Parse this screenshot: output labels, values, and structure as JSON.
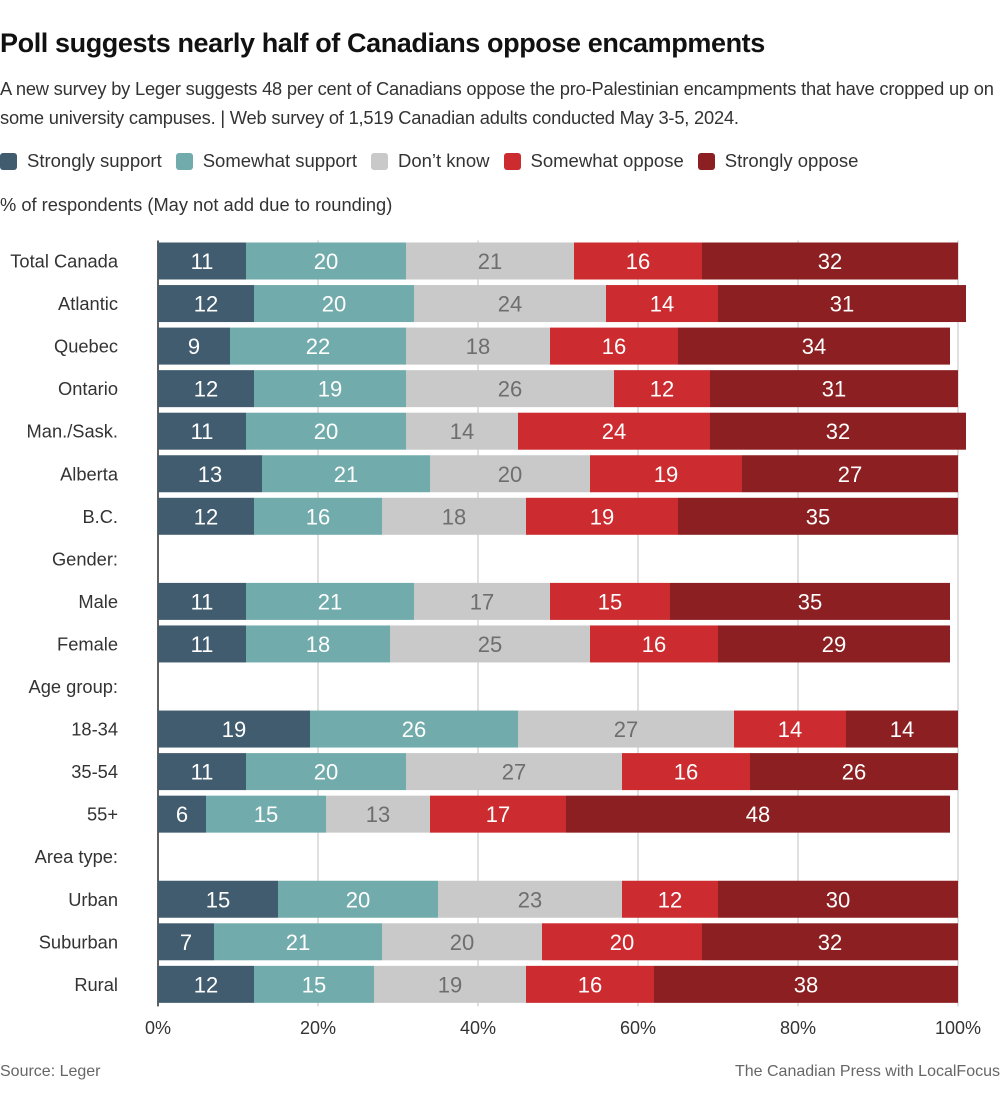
{
  "header": {
    "title": "Poll suggests nearly half of Canadians oppose encampments",
    "subtitle": "A new survey by Leger suggests 48 per cent of Canadians oppose the pro-Palestinian encampments that have cropped up on some university campuses. | Web survey of 1,519 Canadian adults conducted May 3-5, 2024.",
    "note": "% of respondents (May not add due to rounding)"
  },
  "footer": {
    "source": "Source:  Leger",
    "credit": "The Canadian Press with LocalFocus"
  },
  "chart_data": {
    "type": "bar",
    "orientation": "horizontal",
    "stacked": true,
    "title": "Poll suggests nearly half of Canadians oppose encampments",
    "xlabel": "% of respondents (May not add due to rounding)",
    "ylabel": "",
    "xlim": [
      0,
      100
    ],
    "x_ticks": [
      "0%",
      "20%",
      "40%",
      "60%",
      "80%",
      "100%"
    ],
    "grid": true,
    "legend_position": "top-left",
    "series": [
      {
        "name": "Strongly support",
        "color": "#415c6e",
        "label_color": "#ffffff"
      },
      {
        "name": "Somewhat support",
        "color": "#72abab",
        "label_color": "#ffffff"
      },
      {
        "name": "Don’t know",
        "color": "#c9c9c9",
        "label_color": "#6e6e6e"
      },
      {
        "name": "Somewhat oppose",
        "color": "#cc2b2f",
        "label_color": "#ffffff"
      },
      {
        "name": "Strongly oppose",
        "color": "#8b1f21",
        "label_color": "#ffffff"
      }
    ],
    "categories": [
      {
        "label": "Total Canada",
        "values": [
          11,
          20,
          21,
          16,
          32
        ]
      },
      {
        "label": "Atlantic",
        "values": [
          12,
          20,
          24,
          14,
          31
        ]
      },
      {
        "label": "Quebec",
        "values": [
          9,
          22,
          18,
          16,
          34
        ]
      },
      {
        "label": "Ontario",
        "values": [
          12,
          19,
          26,
          12,
          31
        ]
      },
      {
        "label": "Man./Sask.",
        "values": [
          11,
          20,
          14,
          24,
          32
        ]
      },
      {
        "label": "Alberta",
        "values": [
          13,
          21,
          20,
          19,
          27
        ]
      },
      {
        "label": "B.C.",
        "values": [
          12,
          16,
          18,
          19,
          35
        ]
      },
      {
        "label": "Gender:",
        "header": true
      },
      {
        "label": "Male",
        "values": [
          11,
          21,
          17,
          15,
          35
        ]
      },
      {
        "label": "Female",
        "values": [
          11,
          18,
          25,
          16,
          29
        ]
      },
      {
        "label": "Age group:",
        "header": true
      },
      {
        "label": "18-34",
        "values": [
          19,
          26,
          27,
          14,
          14
        ]
      },
      {
        "label": "35-54",
        "values": [
          11,
          20,
          27,
          16,
          26
        ]
      },
      {
        "label": "55+",
        "values": [
          6,
          15,
          13,
          17,
          48
        ]
      },
      {
        "label": "Area type:",
        "header": true
      },
      {
        "label": "Urban",
        "values": [
          15,
          20,
          23,
          12,
          30
        ]
      },
      {
        "label": "Suburban",
        "values": [
          7,
          21,
          20,
          20,
          32
        ]
      },
      {
        "label": "Rural",
        "values": [
          12,
          15,
          19,
          16,
          38
        ]
      }
    ]
  }
}
